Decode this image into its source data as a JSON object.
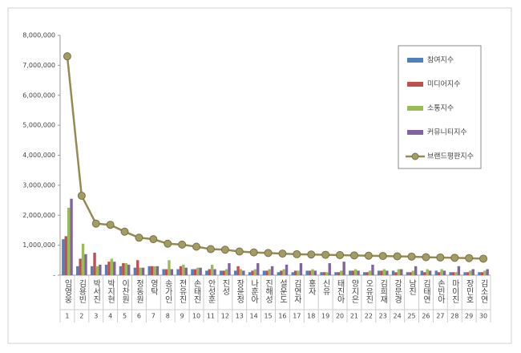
{
  "chart_data": {
    "type": "bar",
    "categories": [
      "임영웅",
      "김용빈",
      "박서진",
      "박지현",
      "이찬원",
      "정동원",
      "영탁",
      "송가인",
      "전유진",
      "손태진",
      "안성훈",
      "진성",
      "장윤정",
      "나훈아",
      "진해성",
      "설운도",
      "김연자",
      "홍자",
      "신유",
      "태진아",
      "양지은",
      "오유진",
      "김희재",
      "강문경",
      "남진",
      "김태연",
      "손빈아",
      "마이진",
      "장민호",
      "김소연"
    ],
    "ranks": [
      1,
      2,
      3,
      4,
      5,
      6,
      7,
      8,
      9,
      10,
      11,
      12,
      13,
      14,
      15,
      16,
      17,
      18,
      19,
      20,
      21,
      22,
      23,
      24,
      25,
      26,
      27,
      28,
      29,
      30
    ],
    "series": [
      {
        "name": "참여지수",
        "color": "#4f81bd",
        "values": [
          1200000,
          300000,
          300000,
          350000,
          300000,
          250000,
          300000,
          200000,
          200000,
          200000,
          150000,
          150000,
          150000,
          100000,
          150000,
          100000,
          100000,
          150000,
          100000,
          100000,
          150000,
          100000,
          150000,
          150000,
          100000,
          150000,
          150000,
          100000,
          100000,
          100000
        ]
      },
      {
        "name": "미디어지수",
        "color": "#c0504d",
        "values": [
          1300000,
          550000,
          750000,
          450000,
          400000,
          500000,
          300000,
          200000,
          300000,
          200000,
          200000,
          150000,
          300000,
          150000,
          150000,
          150000,
          150000,
          150000,
          100000,
          100000,
          150000,
          100000,
          150000,
          100000,
          100000,
          100000,
          100000,
          100000,
          100000,
          100000
        ]
      },
      {
        "name": "소통지수",
        "color": "#9bbb59",
        "values": [
          2250000,
          1050000,
          300000,
          550000,
          400000,
          250000,
          300000,
          500000,
          350000,
          250000,
          350000,
          200000,
          200000,
          200000,
          200000,
          200000,
          150000,
          200000,
          100000,
          150000,
          200000,
          150000,
          200000,
          200000,
          150000,
          200000,
          200000,
          100000,
          150000,
          150000
        ]
      },
      {
        "name": "커뮤니티지수",
        "color": "#8064a2",
        "values": [
          2550000,
          700000,
          350000,
          450000,
          350000,
          250000,
          300000,
          200000,
          250000,
          250000,
          200000,
          400000,
          150000,
          400000,
          300000,
          350000,
          400000,
          150000,
          400000,
          450000,
          150000,
          350000,
          150000,
          200000,
          300000,
          150000,
          150000,
          300000,
          200000,
          200000
        ]
      },
      {
        "name": "브랜드평판지수",
        "color": "#948a54",
        "type": "line",
        "values": [
          7300000,
          2650000,
          1720000,
          1680000,
          1450000,
          1250000,
          1200000,
          1050000,
          1020000,
          950000,
          870000,
          850000,
          790000,
          760000,
          740000,
          720000,
          700000,
          690000,
          680000,
          670000,
          660000,
          650000,
          640000,
          630000,
          620000,
          600000,
          590000,
          580000,
          570000,
          550000
        ]
      }
    ],
    "ylim": [
      0,
      8000000
    ],
    "yticks": [
      {
        "value": 0,
        "label": "-"
      },
      {
        "value": 1000000,
        "label": "1,000,000"
      },
      {
        "value": 2000000,
        "label": "2,000,000"
      },
      {
        "value": 3000000,
        "label": "3,000,000"
      },
      {
        "value": 4000000,
        "label": "4,000,000"
      },
      {
        "value": 5000000,
        "label": "5,000,000"
      },
      {
        "value": 6000000,
        "label": "6,000,000"
      },
      {
        "value": 7000000,
        "label": "7,000,000"
      },
      {
        "value": 8000000,
        "label": "8,000,000"
      }
    ],
    "grid": false
  }
}
